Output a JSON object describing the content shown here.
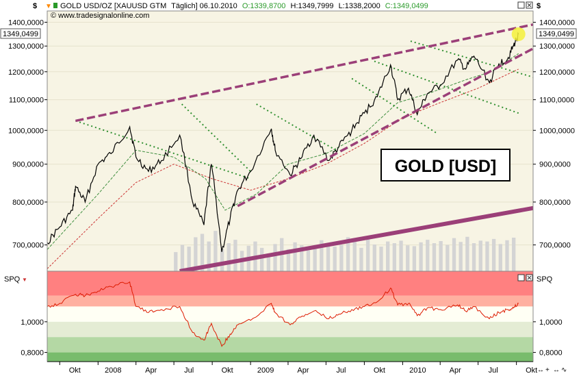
{
  "header": {
    "currency_left": "$",
    "currency_right": "$",
    "instrument": "GOLD USD/OZ [XAUUSD GTM",
    "frequency_date": "Täglich] 06.10.2010",
    "open": "O:1339,8700",
    "high": "H:1349,7999",
    "low": "L:1338,2000",
    "close": "C:1349,0499",
    "source": "© www.tradesignalonline.com"
  },
  "price_label": "1349,0499",
  "indicator_label": "SPQ",
  "overlay_title": "GOLD [USD]",
  "colors": {
    "price_bg": "#f7f4e4",
    "price_line": "#000000",
    "trend_dashed": "#9b3f78",
    "channel_dotted": "#2f8f2f",
    "ma_short": "#3f8f3f",
    "ma_long": "#cc3333",
    "volume": "#d4d4d4",
    "spq_line": "#dd1a00",
    "zone_red_dark": "#ff8080",
    "zone_red_light": "#ffb0a0",
    "zone_neutral": "#fffff4",
    "zone_green_pale": "#e4ecd4",
    "zone_green_light": "#b4d8a4",
    "zone_green_dark": "#78bc6c",
    "highlight": "#f5f03a"
  },
  "chart_data": [
    {
      "type": "line",
      "panel": "price",
      "title": "GOLD USD/OZ [XAUUSD GTM Täglich] 06.10.2010",
      "y_axis": {
        "scale": "log",
        "ylim": [
          645,
          1450
        ],
        "ticks": [
          700,
          800,
          900,
          1000,
          1100,
          1200,
          1300,
          1400
        ],
        "tick_labels": [
          "700,0000",
          "800,0000",
          "900,0000",
          "1000,0000",
          "1100,0000",
          "1200,0000",
          "1300,0000",
          "1400,0000"
        ]
      },
      "x_axis": {
        "xlim": [
          "2007-09-01",
          "2010-11-10"
        ]
      },
      "series": [
        {
          "role": "price",
          "x": [
            "2007-09-01",
            "2007-10-01",
            "2007-11-01",
            "2007-11-08",
            "2007-12-01",
            "2008-01-01",
            "2008-02-01",
            "2008-03-17",
            "2008-04-01",
            "2008-05-01",
            "2008-06-01",
            "2008-07-15",
            "2008-08-15",
            "2008-09-11",
            "2008-09-29",
            "2008-10-24",
            "2008-11-13",
            "2008-12-01",
            "2009-01-01",
            "2009-02-20",
            "2009-03-01",
            "2009-04-06",
            "2009-05-01",
            "2009-06-02",
            "2009-07-08",
            "2009-08-01",
            "2009-09-01",
            "2009-10-01",
            "2009-11-01",
            "2009-12-03",
            "2009-12-20",
            "2010-01-15",
            "2010-02-05",
            "2010-03-01",
            "2010-04-01",
            "2010-05-13",
            "2010-06-01",
            "2010-06-21",
            "2010-07-28",
            "2010-08-20",
            "2010-09-10",
            "2010-09-24",
            "2010-10-06"
          ],
          "values": [
            705,
            740,
            780,
            840,
            800,
            900,
            930,
            1011,
            920,
            880,
            910,
            985,
            800,
            745,
            900,
            685,
            760,
            830,
            880,
            1005,
            940,
            870,
            915,
            985,
            910,
            950,
            1000,
            1055,
            1110,
            1226,
            1100,
            1140,
            1050,
            1120,
            1150,
            1245,
            1210,
            1260,
            1160,
            1230,
            1250,
            1300,
            1349
          ]
        },
        {
          "role": "moving-average-short",
          "x": [
            "2007-09-01",
            "2008-01-01",
            "2008-04-01",
            "2008-07-01",
            "2008-09-15",
            "2008-11-01",
            "2009-01-15",
            "2009-04-01",
            "2009-07-01",
            "2009-10-01",
            "2009-12-20",
            "2010-03-01",
            "2010-06-01",
            "2010-08-01",
            "2010-10-06"
          ],
          "values": [
            690,
            820,
            940,
            920,
            860,
            780,
            820,
            900,
            930,
            990,
            1090,
            1120,
            1170,
            1200,
            1270
          ]
        },
        {
          "role": "moving-average-long",
          "x": [
            "2007-09-01",
            "2008-01-01",
            "2008-04-01",
            "2008-07-01",
            "2008-10-01",
            "2009-01-01",
            "2009-04-01",
            "2009-07-01",
            "2009-10-01",
            "2010-01-01",
            "2010-04-01",
            "2010-07-01",
            "2010-10-06"
          ],
          "values": [
            650,
            760,
            850,
            900,
            860,
            830,
            860,
            900,
            960,
            1040,
            1090,
            1140,
            1210
          ]
        },
        {
          "role": "volume",
          "x_start": "2008-07-01",
          "x_end": "2010-10-06",
          "relative_levels": [
            0.45,
            0.62,
            0.58,
            0.8,
            0.88,
            0.7,
            0.95,
            0.52,
            0.66,
            0.74,
            0.48,
            0.6,
            0.7,
            0.55,
            0.42,
            0.64,
            0.78,
            0.52,
            0.68,
            0.61,
            0.49,
            0.57,
            0.73,
            0.66,
            0.58,
            0.62,
            0.8,
            0.69,
            0.55,
            0.75,
            0.63,
            0.58,
            0.7,
            0.66,
            0.72,
            0.61,
            0.59,
            0.68,
            0.74,
            0.66,
            0.71,
            0.62,
            0.78,
            0.69,
            0.81,
            0.66,
            0.72,
            0.7,
            0.76,
            0.64,
            0.73,
            0.79
          ]
        }
      ],
      "trendlines": [
        {
          "style": "dashed",
          "x": [
            "2007-11-08",
            "2010-11-10"
          ],
          "y": [
            1030,
            1390
          ]
        },
        {
          "style": "dashed",
          "x": [
            "2008-12-01",
            "2010-11-10"
          ],
          "y": [
            790,
            1290
          ]
        },
        {
          "style": "solid-thick",
          "x": [
            "2008-07-15",
            "2010-11-10"
          ],
          "y": [
            645,
            785
          ]
        },
        {
          "style": "dotted",
          "x": [
            "2007-11-08",
            "2009-01-01"
          ],
          "y": [
            1030,
            860
          ]
        },
        {
          "style": "dotted",
          "x": [
            "2008-07-20",
            "2009-01-01"
          ],
          "y": [
            1085,
            880
          ]
        },
        {
          "style": "dotted",
          "x": [
            "2009-01-15",
            "2009-07-25"
          ],
          "y": [
            1085,
            940
          ]
        },
        {
          "style": "dotted",
          "x": [
            "2009-09-01",
            "2010-03-25"
          ],
          "y": [
            1175,
            990
          ]
        },
        {
          "style": "dotted",
          "x": [
            "2009-10-25",
            "2010-10-06"
          ],
          "y": [
            1240,
            1055
          ]
        },
        {
          "style": "dotted",
          "x": [
            "2010-01-20",
            "2010-11-10"
          ],
          "y": [
            1320,
            1180
          ]
        }
      ]
    },
    {
      "type": "line",
      "panel": "indicator",
      "series_name": "SPQ",
      "y_axis": {
        "ylim": [
          0.74,
          1.33
        ],
        "ticks": [
          0.8,
          1.0
        ],
        "tick_labels": [
          "0,8000",
          "1,0000"
        ]
      },
      "zones": [
        {
          "from": 1.17,
          "to": 1.33,
          "color": "#ff8080"
        },
        {
          "from": 1.1,
          "to": 1.17,
          "color": "#ffb0a0"
        },
        {
          "from": 1.0,
          "to": 1.1,
          "color": "#fffff4"
        },
        {
          "from": 0.9,
          "to": 1.0,
          "color": "#e4ecd4"
        },
        {
          "from": 0.8,
          "to": 0.9,
          "color": "#b4d8a4"
        },
        {
          "from": 0.74,
          "to": 0.8,
          "color": "#78bc6c"
        }
      ],
      "x": [
        "2007-09-01",
        "2007-10-01",
        "2007-11-08",
        "2007-12-01",
        "2008-01-01",
        "2008-02-01",
        "2008-03-17",
        "2008-04-01",
        "2008-05-01",
        "2008-06-01",
        "2008-07-15",
        "2008-08-15",
        "2008-09-11",
        "2008-09-29",
        "2008-10-24",
        "2008-11-13",
        "2008-12-01",
        "2009-01-01",
        "2009-02-20",
        "2009-03-01",
        "2009-04-06",
        "2009-05-01",
        "2009-06-02",
        "2009-07-08",
        "2009-08-01",
        "2009-09-01",
        "2009-10-01",
        "2009-11-01",
        "2009-12-03",
        "2009-12-20",
        "2010-01-15",
        "2010-02-05",
        "2010-03-01",
        "2010-04-01",
        "2010-05-13",
        "2010-06-01",
        "2010-06-21",
        "2010-07-28",
        "2010-08-20",
        "2010-09-10",
        "2010-09-24",
        "2010-10-06"
      ],
      "values": [
        1.1,
        1.12,
        1.18,
        1.17,
        1.2,
        1.23,
        1.26,
        1.1,
        1.06,
        1.08,
        1.1,
        0.93,
        0.88,
        0.99,
        0.84,
        0.92,
        0.98,
        1.01,
        1.12,
        1.06,
        0.98,
        1.03,
        1.07,
        1.02,
        1.05,
        1.08,
        1.1,
        1.13,
        1.22,
        1.11,
        1.12,
        1.04,
        1.09,
        1.08,
        1.11,
        1.07,
        1.1,
        1.02,
        1.06,
        1.08,
        1.09,
        1.12
      ]
    }
  ],
  "x_ticks": [
    "Okt",
    "2008",
    "Apr",
    "Jul",
    "Okt",
    "2009",
    "Apr",
    "Jul",
    "Okt",
    "2010",
    "Apr",
    "Jul",
    "Okt"
  ],
  "x_tick_dates": [
    "2007-10-01",
    "2008-01-01",
    "2008-04-01",
    "2008-07-01",
    "2008-10-01",
    "2009-01-01",
    "2009-04-01",
    "2009-07-01",
    "2009-10-01",
    "2010-01-01",
    "2010-04-01",
    "2010-07-01",
    "2010-10-01"
  ]
}
